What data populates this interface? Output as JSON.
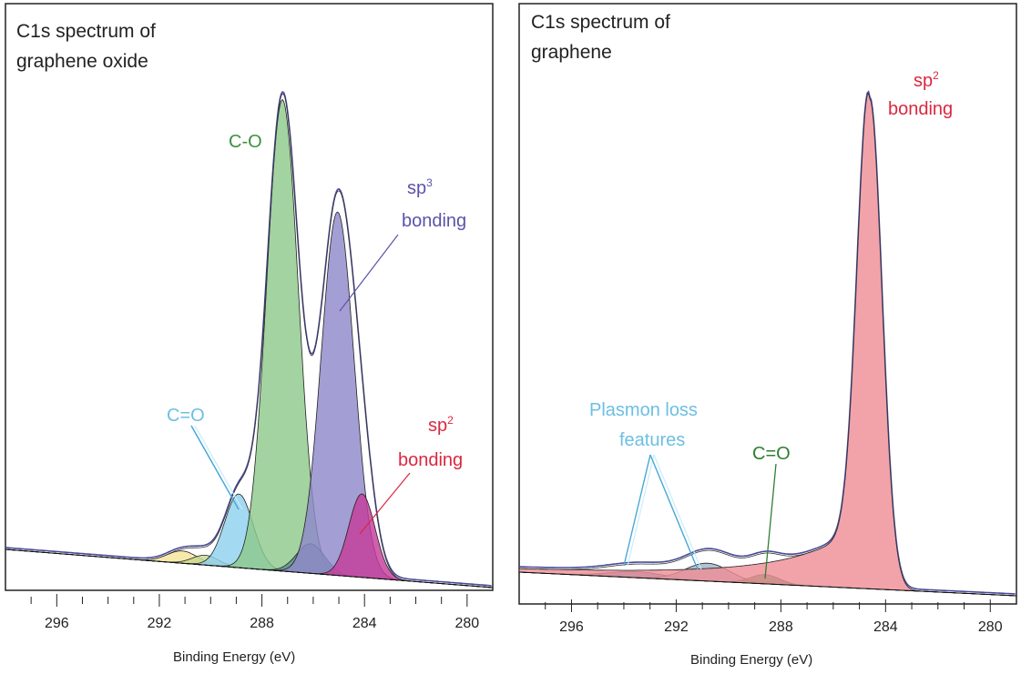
{
  "chart_data": [
    {
      "type": "area",
      "title_lines": [
        "C1s spectrum of",
        "graphene oxide"
      ],
      "xlabel": "Binding Energy (eV)",
      "ylabel": "",
      "x_reversed": true,
      "xlim": [
        298,
        279
      ],
      "ylim": [
        0,
        1
      ],
      "grid": false,
      "xticks": [
        296,
        292,
        288,
        284,
        280
      ],
      "background": {
        "y_at_high_be": 0.06,
        "y_at_low_be": 0.0
      },
      "envelope_color": "#4a4a9a",
      "components": [
        {
          "label": "",
          "center": 291.1,
          "height": 0.025,
          "fwhm": 1.4,
          "color": "#f5e49a"
        },
        {
          "label": "",
          "center": 290.2,
          "height": 0.02,
          "fwhm": 1.2,
          "color": "#c9d88e"
        },
        {
          "label": "C=O",
          "center": 288.9,
          "height": 0.15,
          "fwhm": 1.3,
          "color": "#8fd1ee"
        },
        {
          "label": "C-O",
          "center": 287.2,
          "height": 0.96,
          "fwhm": 1.45,
          "color": "#8ec98c"
        },
        {
          "label": "",
          "center": 286.1,
          "height": 0.06,
          "fwhm": 1.3,
          "color": "#5f8f8f"
        },
        {
          "label": "sp3 bonding",
          "center": 285.05,
          "height": 0.74,
          "fwhm": 1.5,
          "color": "#8f89c9"
        },
        {
          "label": "sp2 bonding",
          "center": 284.1,
          "height": 0.17,
          "fwhm": 1.2,
          "color": "#c63c9b"
        }
      ],
      "annotations": [
        {
          "text": "C-O",
          "color": "#3f8f3f"
        },
        {
          "text": "sp",
          "sup": "3",
          "line2": "bonding",
          "color": "#5a53a8"
        },
        {
          "text": "C=O",
          "color": "#6cbfe2"
        },
        {
          "text": "sp",
          "sup": "2",
          "line2": "bonding",
          "color": "#d9283f"
        }
      ]
    },
    {
      "type": "area",
      "title_lines": [
        "C1s spectrum of",
        "graphene"
      ],
      "xlabel": "Binding Energy (eV)",
      "ylabel": "",
      "x_reversed": true,
      "xlim": [
        298,
        279
      ],
      "ylim": [
        0,
        1
      ],
      "grid": false,
      "xticks": [
        296,
        292,
        288,
        284,
        280
      ],
      "background": {
        "y_at_high_be": 0.03,
        "y_at_low_be": 0.0
      },
      "envelope_color": "#4a4a9a",
      "components": [
        {
          "label": "Plasmon loss features",
          "center": 293.5,
          "height": 0.012,
          "fwhm": 2.5,
          "color": "#4a8fbf"
        },
        {
          "label": "Plasmon loss features",
          "center": 290.8,
          "height": 0.035,
          "fwhm": 2.0,
          "color": "#9fb5c9"
        },
        {
          "label": "C=O",
          "center": 288.6,
          "height": 0.018,
          "fwhm": 1.3,
          "color": "#2e8a3e"
        },
        {
          "label": "sp2 bonding",
          "center": 284.6,
          "height": 0.96,
          "fwhm": 1.1,
          "tail": 4.5,
          "color": "#ee8f96"
        }
      ],
      "annotations": [
        {
          "text": "sp",
          "sup": "2",
          "line2": "bonding",
          "color": "#d9283f"
        },
        {
          "text": "Plasmon loss",
          "line2": "features",
          "color": "#6cbfe2"
        },
        {
          "text": "C=O",
          "color": "#2e7d32"
        }
      ]
    }
  ]
}
